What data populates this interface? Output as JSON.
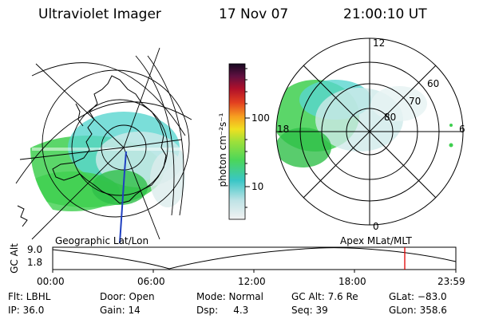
{
  "header": {
    "instrument": "Ultraviolet Imager",
    "date": "17 Nov 07",
    "time": "21:00:10 UT"
  },
  "colorbar": {
    "unit_label": "photon cm⁻²s⁻¹",
    "ticks": [
      "100",
      "10"
    ]
  },
  "geo_map": {
    "caption": "Geographic Lat/Lon"
  },
  "polar_plot": {
    "caption": "Apex MLat/MLT",
    "mlt_labels": {
      "top": "12",
      "left": "18",
      "right": "6",
      "bottom": "0"
    },
    "lat_labels": [
      "60",
      "70",
      "80"
    ]
  },
  "orbit_plot": {
    "ylabel": "GC Alt",
    "yticks": [
      "9.0",
      "1.8"
    ],
    "xticks": [
      "00:00",
      "06:00",
      "12:00",
      "18:00",
      "23:59"
    ],
    "current_marker_color": "#e00000"
  },
  "status": {
    "row1": {
      "filter": "Flt: LBHL",
      "door": "Door: Open",
      "mode": "Mode: Normal",
      "gc_alt": "GC Alt: 7.6 Re",
      "glat": "GLat: −83.0"
    },
    "row2": {
      "ip": "IP: 36.0",
      "gain": "Gain: 14",
      "dsp": "Dsp:     4.3",
      "seq": "Seq: 39",
      "glon": "GLon: 358.6"
    }
  },
  "colors": {
    "aurora_green": "#3ecf4f",
    "aurora_cyan": "#59d6d0",
    "aurora_pale": "#cfeaea",
    "coastline": "#000000",
    "marker": "#e00000"
  }
}
